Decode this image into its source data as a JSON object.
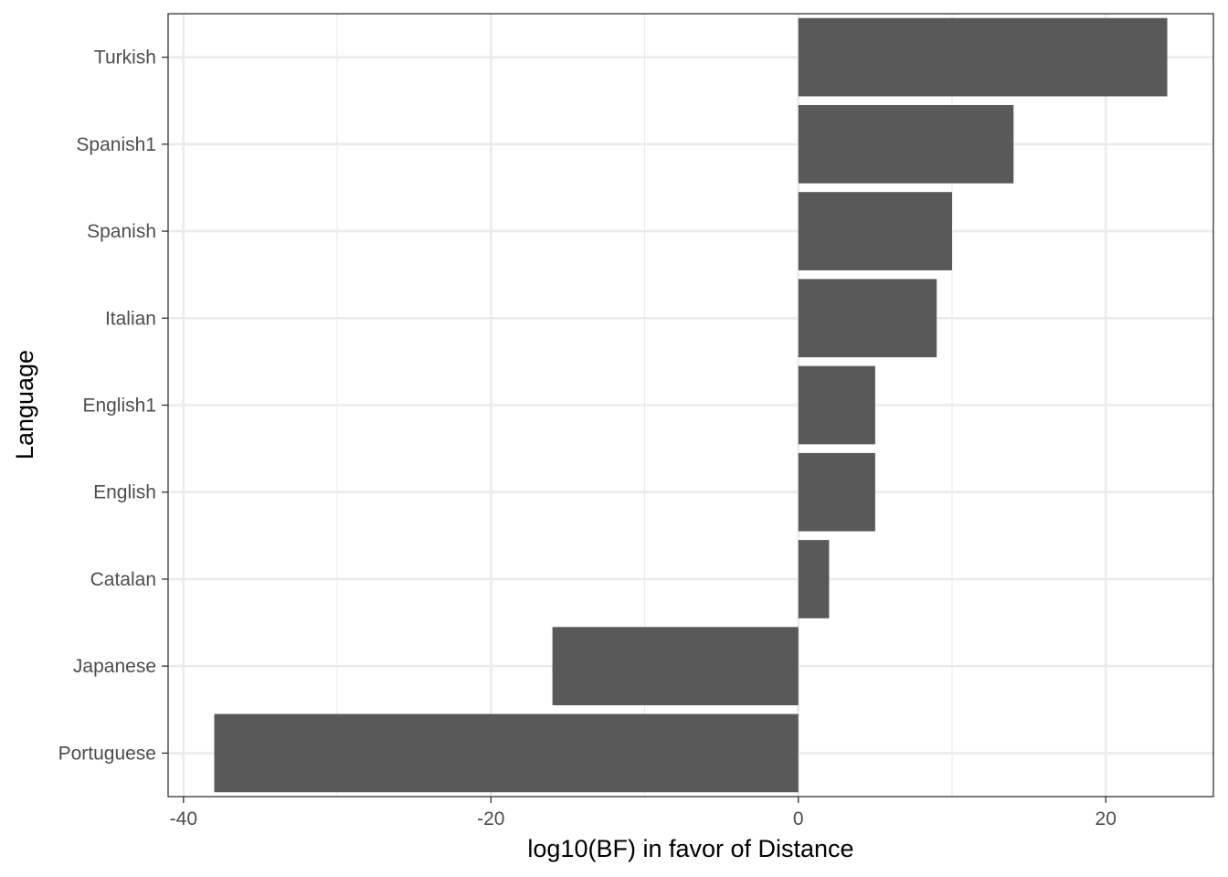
{
  "chart_data": {
    "type": "bar",
    "orientation": "horizontal",
    "categories": [
      "Turkish",
      "Spanish1",
      "Spanish",
      "Italian",
      "English1",
      "English",
      "Catalan",
      "Japanese",
      "Portuguese"
    ],
    "values": [
      24,
      14,
      10,
      9,
      5,
      5,
      2,
      -16,
      -38
    ],
    "title": "",
    "xlabel": "log10(BF) in favor of Distance",
    "ylabel": "Language",
    "xlim": [
      -41,
      27
    ],
    "xticks": [
      -40,
      -20,
      0,
      20
    ],
    "grid": true,
    "bar_color": "#595959",
    "legend": "none"
  }
}
